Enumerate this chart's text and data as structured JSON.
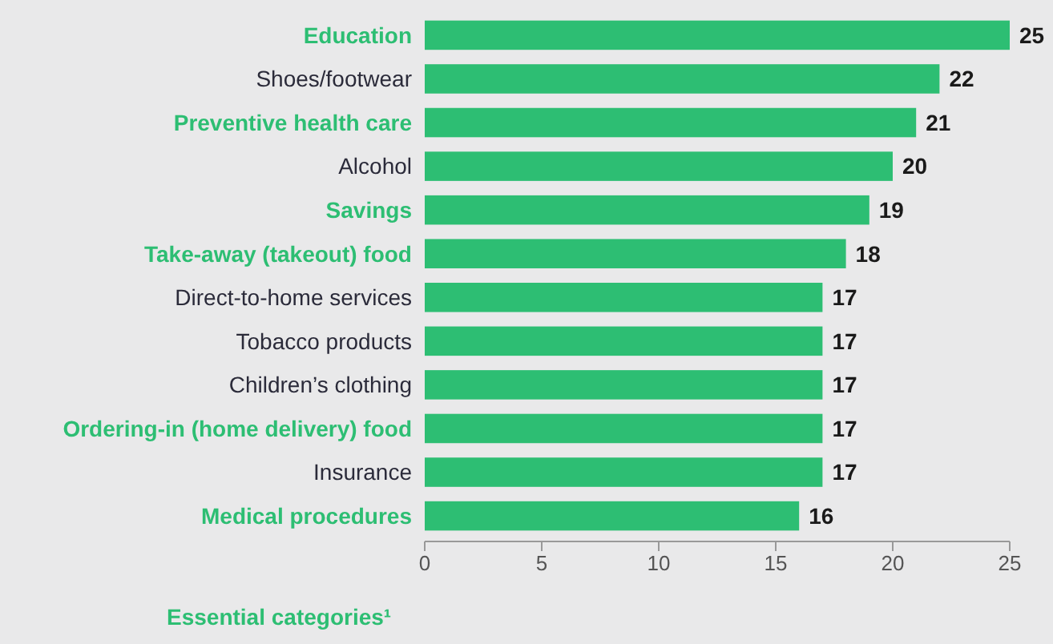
{
  "chart_data": {
    "type": "bar",
    "orientation": "horizontal",
    "categories": [
      "Education",
      "Shoes/footwear",
      "Preventive health care",
      "Alcohol",
      "Savings",
      "Take-away (takeout) food",
      "Direct-to-home services",
      "Tobacco products",
      "Children’s clothing",
      "Ordering-in (home delivery) food",
      "Insurance",
      "Medical procedures"
    ],
    "values": [
      25,
      22,
      21,
      20,
      19,
      18,
      17,
      17,
      17,
      17,
      17,
      16
    ],
    "color": "#2dbe73",
    "xlim": [
      0,
      25
    ],
    "xticks": [
      0,
      5,
      10,
      15,
      20,
      25
    ],
    "data_labels": true,
    "annotations": [
      "Essential categories¹"
    ]
  }
}
